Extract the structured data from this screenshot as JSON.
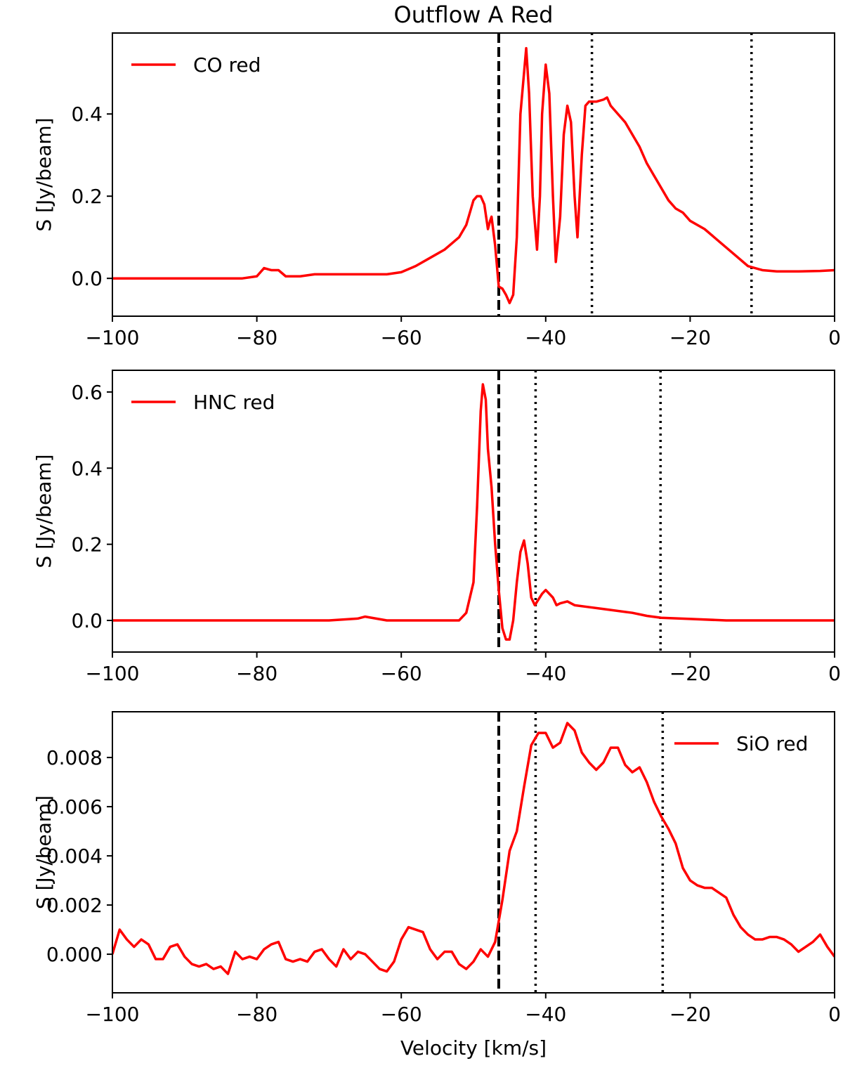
{
  "chart_data": [
    {
      "type": "line",
      "title": "Outflow A Red",
      "ylabel": "S [Jy/beam]",
      "x": [
        -100,
        -95,
        -90,
        -85,
        -82,
        -80,
        -79,
        -78,
        -77,
        -76,
        -74,
        -72,
        -70,
        -66,
        -62,
        -60,
        -58,
        -56,
        -54,
        -52,
        -51,
        -50,
        -49.5,
        -49,
        -48.5,
        -48,
        -47.7,
        -47.5,
        -47,
        -46.5,
        -46,
        -45.5,
        -45,
        -44.5,
        -44,
        -43.5,
        -43,
        -42.7,
        -42.3,
        -41.8,
        -41.2,
        -40.8,
        -40.5,
        -40,
        -39.5,
        -39,
        -38.6,
        -38,
        -37.5,
        -37,
        -36.5,
        -36,
        -35.6,
        -35,
        -34.5,
        -34,
        -33,
        -32,
        -31.5,
        -31,
        -30,
        -29,
        -28,
        -27,
        -26,
        -25,
        -24,
        -23,
        -22,
        -21,
        -20,
        -18,
        -16,
        -14,
        -12,
        -10,
        -8,
        -5,
        -2,
        0
      ],
      "series": [
        {
          "name": "CO red",
          "color": "#ff0000",
          "values": [
            0,
            0,
            0,
            0,
            0,
            0.005,
            0.025,
            0.02,
            0.02,
            0.005,
            0.005,
            0.01,
            0.01,
            0.01,
            0.01,
            0.015,
            0.03,
            0.05,
            0.07,
            0.1,
            0.13,
            0.19,
            0.2,
            0.2,
            0.18,
            0.12,
            0.14,
            0.15,
            0.08,
            -0.02,
            -0.025,
            -0.04,
            -0.06,
            -0.04,
            0.1,
            0.4,
            0.5,
            0.56,
            0.45,
            0.2,
            0.07,
            0.2,
            0.4,
            0.52,
            0.45,
            0.2,
            0.04,
            0.15,
            0.35,
            0.42,
            0.38,
            0.2,
            0.1,
            0.3,
            0.42,
            0.43,
            0.43,
            0.435,
            0.44,
            0.42,
            0.4,
            0.38,
            0.35,
            0.32,
            0.28,
            0.25,
            0.22,
            0.19,
            0.17,
            0.16,
            0.14,
            0.12,
            0.09,
            0.06,
            0.03,
            0.02,
            0.017,
            0.017,
            0.018,
            0.02
          ]
        }
      ],
      "vlines": [
        {
          "value": -46.5,
          "style": "dashed"
        },
        {
          "value": -33.6,
          "style": "dotted"
        },
        {
          "value": -11.5,
          "style": "dotted"
        }
      ],
      "legend": "upper left",
      "xlim": [
        -100,
        0
      ],
      "xticks": [
        {
          "value": -100,
          "label": "−100"
        },
        {
          "value": -80,
          "label": "−80"
        },
        {
          "value": -60,
          "label": "−60"
        },
        {
          "value": -40,
          "label": "−40"
        },
        {
          "value": -20,
          "label": "−20"
        },
        0
      ],
      "ylim": [
        -0.092,
        0.597
      ],
      "yticks": [
        {
          "value": 0,
          "label": "0.0"
        },
        {
          "value": 0.2,
          "label": "0.2"
        },
        {
          "value": 0.4,
          "label": "0.4"
        }
      ]
    },
    {
      "type": "line",
      "ylabel": "S [Jy/beam]",
      "x": [
        -100,
        -90,
        -80,
        -70,
        -66,
        -65,
        -62,
        -55,
        -52,
        -51,
        -50,
        -49.5,
        -49,
        -48.7,
        -48.3,
        -48,
        -47.5,
        -47,
        -46.5,
        -46,
        -45.5,
        -45,
        -44.5,
        -44,
        -43.5,
        -43,
        -42.5,
        -42,
        -41.5,
        -41,
        -40.5,
        -40,
        -39,
        -38.5,
        -38,
        -37,
        -36,
        -34,
        -32,
        -28,
        -26,
        -24,
        -20,
        -15,
        -10,
        -5,
        0
      ],
      "series": [
        {
          "name": "HNC red",
          "color": "#ff0000",
          "values": [
            0,
            0,
            0,
            0,
            0.005,
            0.01,
            0,
            0,
            0,
            0.02,
            0.1,
            0.3,
            0.55,
            0.62,
            0.58,
            0.45,
            0.35,
            0.2,
            0.08,
            -0.02,
            -0.05,
            -0.05,
            0,
            0.1,
            0.18,
            0.21,
            0.15,
            0.06,
            0.04,
            0.055,
            0.07,
            0.08,
            0.06,
            0.04,
            0.045,
            0.05,
            0.04,
            0.035,
            0.03,
            0.02,
            0.012,
            0.007,
            0.004,
            0,
            0,
            0,
            0
          ]
        }
      ],
      "vlines": [
        {
          "value": -46.5,
          "style": "dashed"
        },
        {
          "value": -41.4,
          "style": "dotted"
        },
        {
          "value": -24.1,
          "style": "dotted"
        }
      ],
      "legend": "upper left",
      "xlim": [
        -100,
        0
      ],
      "xticks": [
        {
          "value": -100,
          "label": "−100"
        },
        {
          "value": -80,
          "label": "−80"
        },
        {
          "value": -60,
          "label": "−60"
        },
        {
          "value": -40,
          "label": "−40"
        },
        {
          "value": -20,
          "label": "−20"
        },
        0
      ],
      "ylim": [
        -0.083,
        0.657
      ],
      "yticks": [
        {
          "value": 0,
          "label": "0.0"
        },
        {
          "value": 0.2,
          "label": "0.2"
        },
        {
          "value": 0.4,
          "label": "0.4"
        },
        {
          "value": 0.6,
          "label": "0.6"
        }
      ]
    },
    {
      "type": "line",
      "ylabel": "S [Jy/beam]",
      "xlabel": "Velocity [km/s]",
      "x": [
        -100,
        -99,
        -98,
        -97,
        -96,
        -95,
        -94,
        -93,
        -92,
        -91,
        -90,
        -89,
        -88,
        -87,
        -86,
        -85,
        -84,
        -83,
        -82,
        -81,
        -80,
        -79,
        -78,
        -77,
        -76,
        -75,
        -74,
        -73,
        -72,
        -71,
        -70,
        -69,
        -68,
        -67,
        -66,
        -65,
        -64,
        -63,
        -62,
        -61,
        -60,
        -59,
        -58,
        -57,
        -56,
        -55,
        -54,
        -53,
        -52,
        -51,
        -50,
        -49,
        -48,
        -47,
        -46,
        -45,
        -44,
        -43,
        -42,
        -41,
        -40,
        -39,
        -38,
        -37,
        -36,
        -35,
        -34,
        -33,
        -32,
        -31,
        -30,
        -29,
        -28,
        -27,
        -26,
        -25,
        -24,
        -23,
        -22,
        -21,
        -20,
        -19,
        -18,
        -17,
        -16,
        -15,
        -14,
        -13,
        -12,
        -11,
        -10,
        -9,
        -8,
        -7,
        -6,
        -5,
        -4,
        -3,
        -2,
        -1,
        0
      ],
      "series": [
        {
          "name": "SiO red",
          "color": "#ff0000",
          "values": [
            0,
            0.001,
            0.0006,
            0.0003,
            0.0006,
            0.0004,
            -0.0002,
            -0.0002,
            0.0003,
            0.0004,
            -0.0001,
            -0.0004,
            -0.0005,
            -0.0004,
            -0.0006,
            -0.0005,
            -0.0008,
            0.0001,
            -0.0002,
            -0.0001,
            -0.0002,
            0.0002,
            0.0004,
            0.0005,
            -0.0002,
            -0.0003,
            -0.0002,
            -0.0003,
            0.0001,
            0.0002,
            -0.0002,
            -0.0005,
            0.0002,
            -0.0002,
            0.0001,
            0,
            -0.0003,
            -0.0006,
            -0.0007,
            -0.0003,
            0.0006,
            0.0011,
            0.001,
            0.0009,
            0.0002,
            -0.0002,
            0.0001,
            0.0001,
            -0.0004,
            -0.0006,
            -0.0003,
            0.0002,
            -0.0001,
            0.0005,
            0.0022,
            0.0042,
            0.005,
            0.0068,
            0.0085,
            0.009,
            0.009,
            0.0084,
            0.0086,
            0.0094,
            0.0091,
            0.0082,
            0.0078,
            0.0075,
            0.0078,
            0.0084,
            0.0084,
            0.0077,
            0.0074,
            0.0076,
            0.007,
            0.0062,
            0.0056,
            0.0051,
            0.0045,
            0.0035,
            0.003,
            0.0028,
            0.0027,
            0.0027,
            0.0025,
            0.0023,
            0.0016,
            0.0011,
            0.0008,
            0.0006,
            0.0006,
            0.0007,
            0.0007,
            0.0006,
            0.0004,
            0.0001,
            0.0003,
            0.0005,
            0.0008,
            0.0003,
            -0.0001
          ]
        }
      ],
      "vlines": [
        {
          "value": -46.5,
          "style": "dashed"
        },
        {
          "value": -41.4,
          "style": "dotted"
        },
        {
          "value": -23.8,
          "style": "dotted"
        }
      ],
      "legend": "upper right",
      "xlim": [
        -100,
        0
      ],
      "xticks": [
        {
          "value": -100,
          "label": "−100"
        },
        {
          "value": -80,
          "label": "−80"
        },
        {
          "value": -60,
          "label": "−60"
        },
        {
          "value": -40,
          "label": "−40"
        },
        {
          "value": -20,
          "label": "−20"
        },
        0
      ],
      "ylim": [
        -0.00157,
        0.00986
      ],
      "yticks": [
        {
          "value": 0,
          "label": "0.000"
        },
        {
          "value": 0.002,
          "label": "0.002"
        },
        {
          "value": 0.004,
          "label": "0.004"
        },
        {
          "value": 0.006,
          "label": "0.006"
        },
        {
          "value": 0.008,
          "label": "0.008"
        }
      ]
    }
  ]
}
